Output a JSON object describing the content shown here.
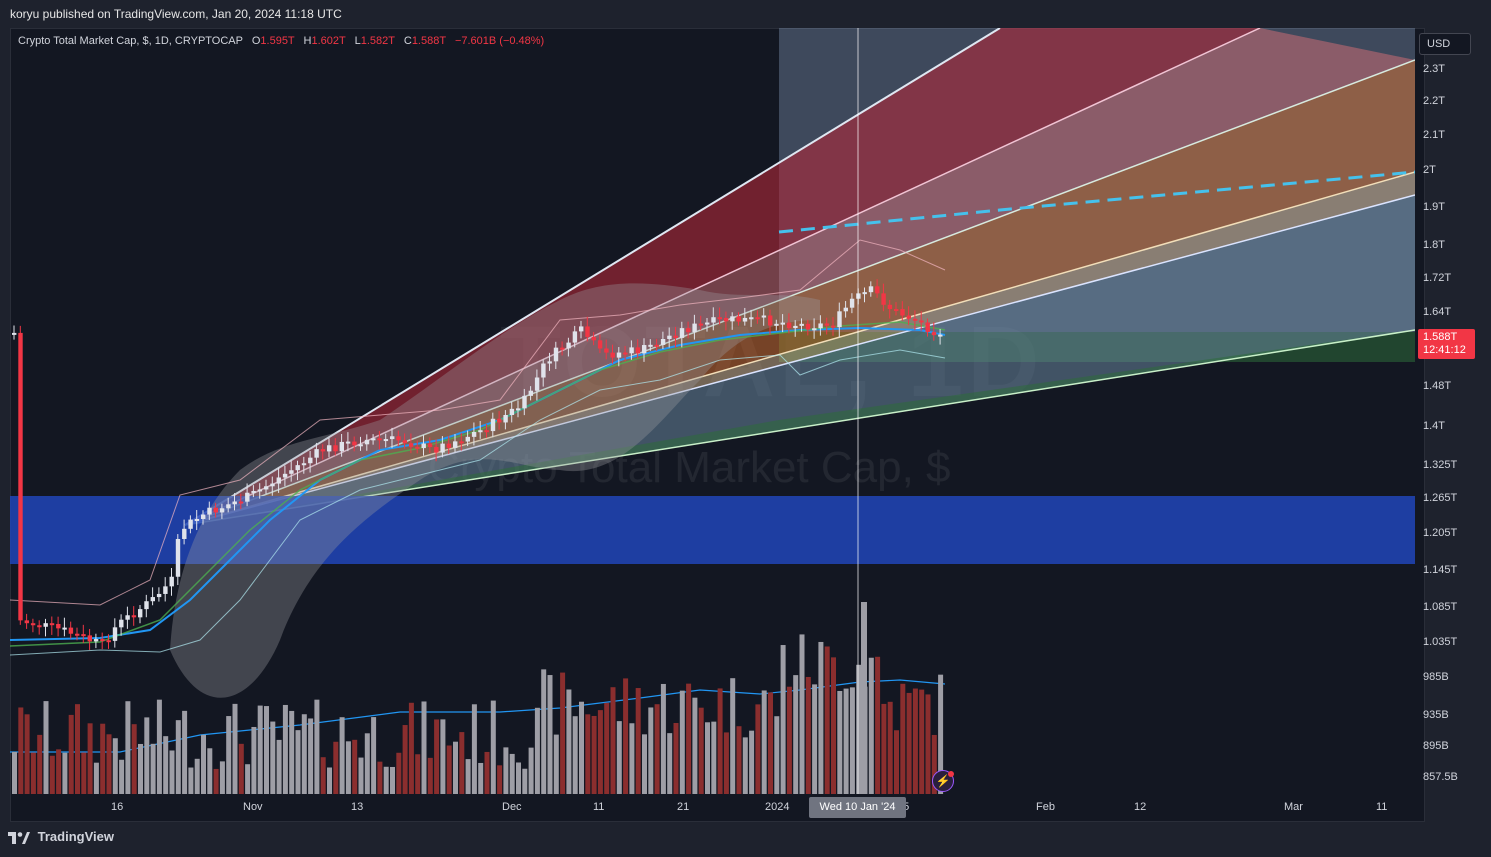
{
  "header": {
    "published_by": "koryu published on TradingView.com, Jan 20, 2024 11:18 UTC"
  },
  "legend": {
    "symbol": "Crypto Total Market Cap, $, 1D, CRYPTOCAP",
    "open_label": "O",
    "open": "1.595T",
    "high_label": "H",
    "high": "1.602T",
    "low_label": "L",
    "low": "1.582T",
    "close_label": "C",
    "close": "1.588T",
    "change": "−7.601B (−0.48%)"
  },
  "watermark": {
    "ticker": "TOTAL, 1D",
    "name": "Crypto Total Market Cap, $"
  },
  "price_axis": {
    "currency": "USD",
    "ticks": [
      "2.3T",
      "2.2T",
      "2.1T",
      "2T",
      "1.9T",
      "1.8T",
      "1.72T",
      "1.64T",
      "1.48T",
      "1.4T",
      "1.325T",
      "1.265T",
      "1.205T",
      "1.145T",
      "1.085T",
      "1.035T",
      "985B",
      "935B",
      "895B",
      "857.5B"
    ],
    "current_price": "1.588T",
    "countdown": "12:41:12"
  },
  "time_axis": {
    "ticks": [
      "16",
      "Nov",
      "13",
      "Dec",
      "11",
      "21",
      "2024",
      "15",
      "Feb",
      "12",
      "Mar",
      "11"
    ],
    "crosshair_label": "Wed 10 Jan '24"
  },
  "colors": {
    "background": "#131722",
    "up_candle": "#e0e3eb",
    "down_candle": "#f23645",
    "support_zone": "#2145b8",
    "price_badge": "#f23645"
  },
  "footer": {
    "brand": "TradingView"
  },
  "icons": {
    "logo": "tradingview-logo-icon",
    "alert": "lightning-bolt-icon"
  }
}
